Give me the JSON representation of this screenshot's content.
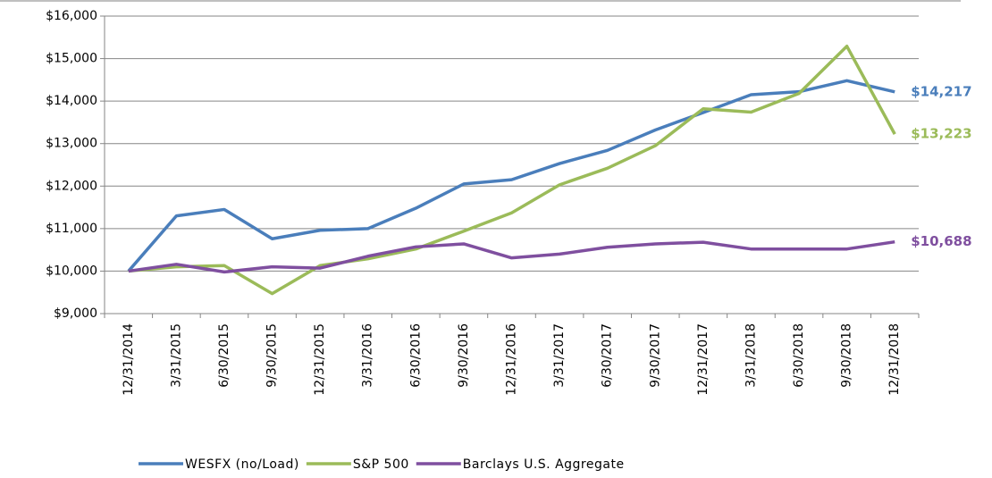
{
  "chart_data": {
    "type": "line",
    "categories": [
      "12/31/2014",
      "3/31/2015",
      "6/30/2015",
      "9/30/2015",
      "12/31/2015",
      "3/31/2016",
      "6/30/2016",
      "9/30/2016",
      "12/31/2016",
      "3/31/2017",
      "6/30/2017",
      "9/30/2017",
      "12/31/2017",
      "3/31/2018",
      "6/30/2018",
      "9/30/2018",
      "12/31/2018"
    ],
    "series": [
      {
        "name": "WESFX (no/Load)",
        "color": "#4a7ebb",
        "values": [
          10000,
          11300,
          11450,
          10760,
          10960,
          11000,
          11480,
          12050,
          12150,
          12530,
          12840,
          13320,
          13730,
          14150,
          14220,
          14480,
          14217
        ],
        "value_labels": [
          null,
          null,
          null,
          null,
          null,
          null,
          null,
          null,
          null,
          null,
          null,
          null,
          null,
          null,
          null,
          null,
          "$14,217"
        ]
      },
      {
        "name": "S&P 500",
        "color": "#9bbb59",
        "values": [
          10000,
          10100,
          10130,
          9470,
          10130,
          10290,
          10520,
          10940,
          11370,
          12030,
          12420,
          12950,
          13820,
          13740,
          14180,
          15290,
          13223
        ],
        "value_labels": [
          null,
          null,
          null,
          null,
          null,
          null,
          null,
          null,
          null,
          null,
          null,
          null,
          null,
          null,
          null,
          null,
          "$13,223"
        ]
      },
      {
        "name": "Barclays U.S. Aggregate",
        "color": "#7f4f9f",
        "values": [
          10000,
          10160,
          9980,
          10100,
          10070,
          10350,
          10570,
          10640,
          10310,
          10400,
          10560,
          10640,
          10680,
          10520,
          10520,
          10520,
          10688
        ],
        "value_labels": [
          null,
          null,
          null,
          null,
          null,
          null,
          null,
          null,
          null,
          null,
          null,
          null,
          null,
          null,
          null,
          null,
          "$10,688"
        ]
      }
    ],
    "ylim": [
      9000,
      16000
    ],
    "yticks": [
      {
        "value": 9000,
        "label": "$9,000"
      },
      {
        "value": 10000,
        "label": "$10,000"
      },
      {
        "value": 11000,
        "label": "$11,000"
      },
      {
        "value": 12000,
        "label": "$12,000"
      },
      {
        "value": 13000,
        "label": "$13,000"
      },
      {
        "value": 14000,
        "label": "$14,000"
      },
      {
        "value": 15000,
        "label": "$15,000"
      },
      {
        "value": 16000,
        "label": "$16,000"
      }
    ],
    "grid": true,
    "legend": "bottom"
  }
}
